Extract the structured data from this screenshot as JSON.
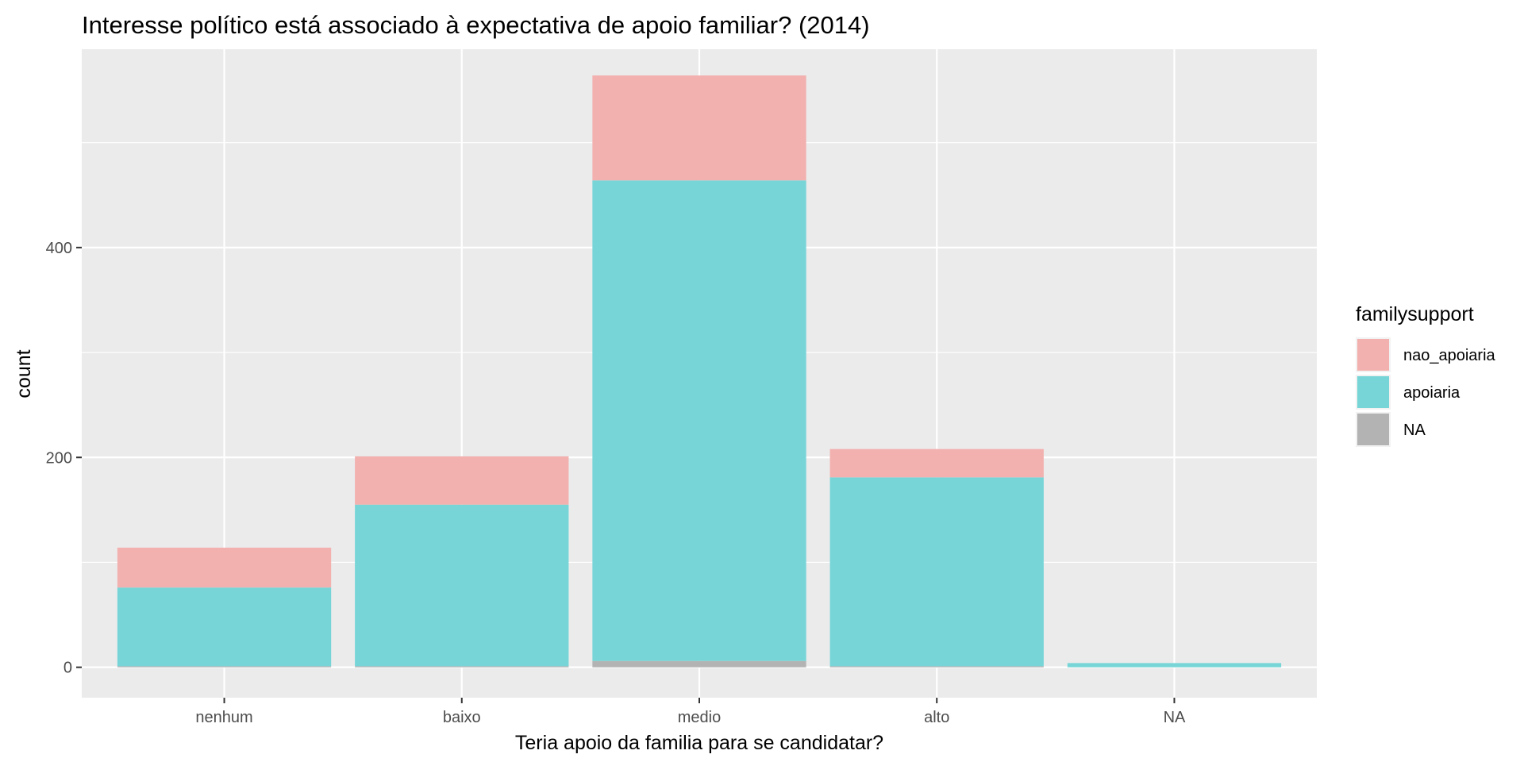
{
  "chart_data": {
    "type": "bar",
    "stacked": true,
    "title": "Interesse político está associado à expectativa de apoio familiar? (2014)",
    "xlabel": "Teria apoio da familia para se candidatar?",
    "ylabel": "count",
    "categories": [
      "nenhum",
      "baixo",
      "medio",
      "alto",
      "NA"
    ],
    "series": [
      {
        "name": "NA",
        "color": "#b3b3b3",
        "values": [
          1,
          1,
          6,
          1,
          0
        ]
      },
      {
        "name": "apoiaria",
        "color": "#77d5d7",
        "values": [
          75,
          154,
          458,
          180,
          4
        ]
      },
      {
        "name": "nao_apoiaria",
        "color": "#f2b1af",
        "values": [
          38,
          46,
          100,
          27,
          0
        ]
      }
    ],
    "legend_order": [
      "nao_apoiaria",
      "apoiaria",
      "NA"
    ],
    "legend_title": "familysupport",
    "legend_position": "right",
    "ylim": [
      -29,
      589
    ],
    "yticks": [
      0,
      200,
      400
    ],
    "grid": true,
    "background": "#ebebeb"
  }
}
